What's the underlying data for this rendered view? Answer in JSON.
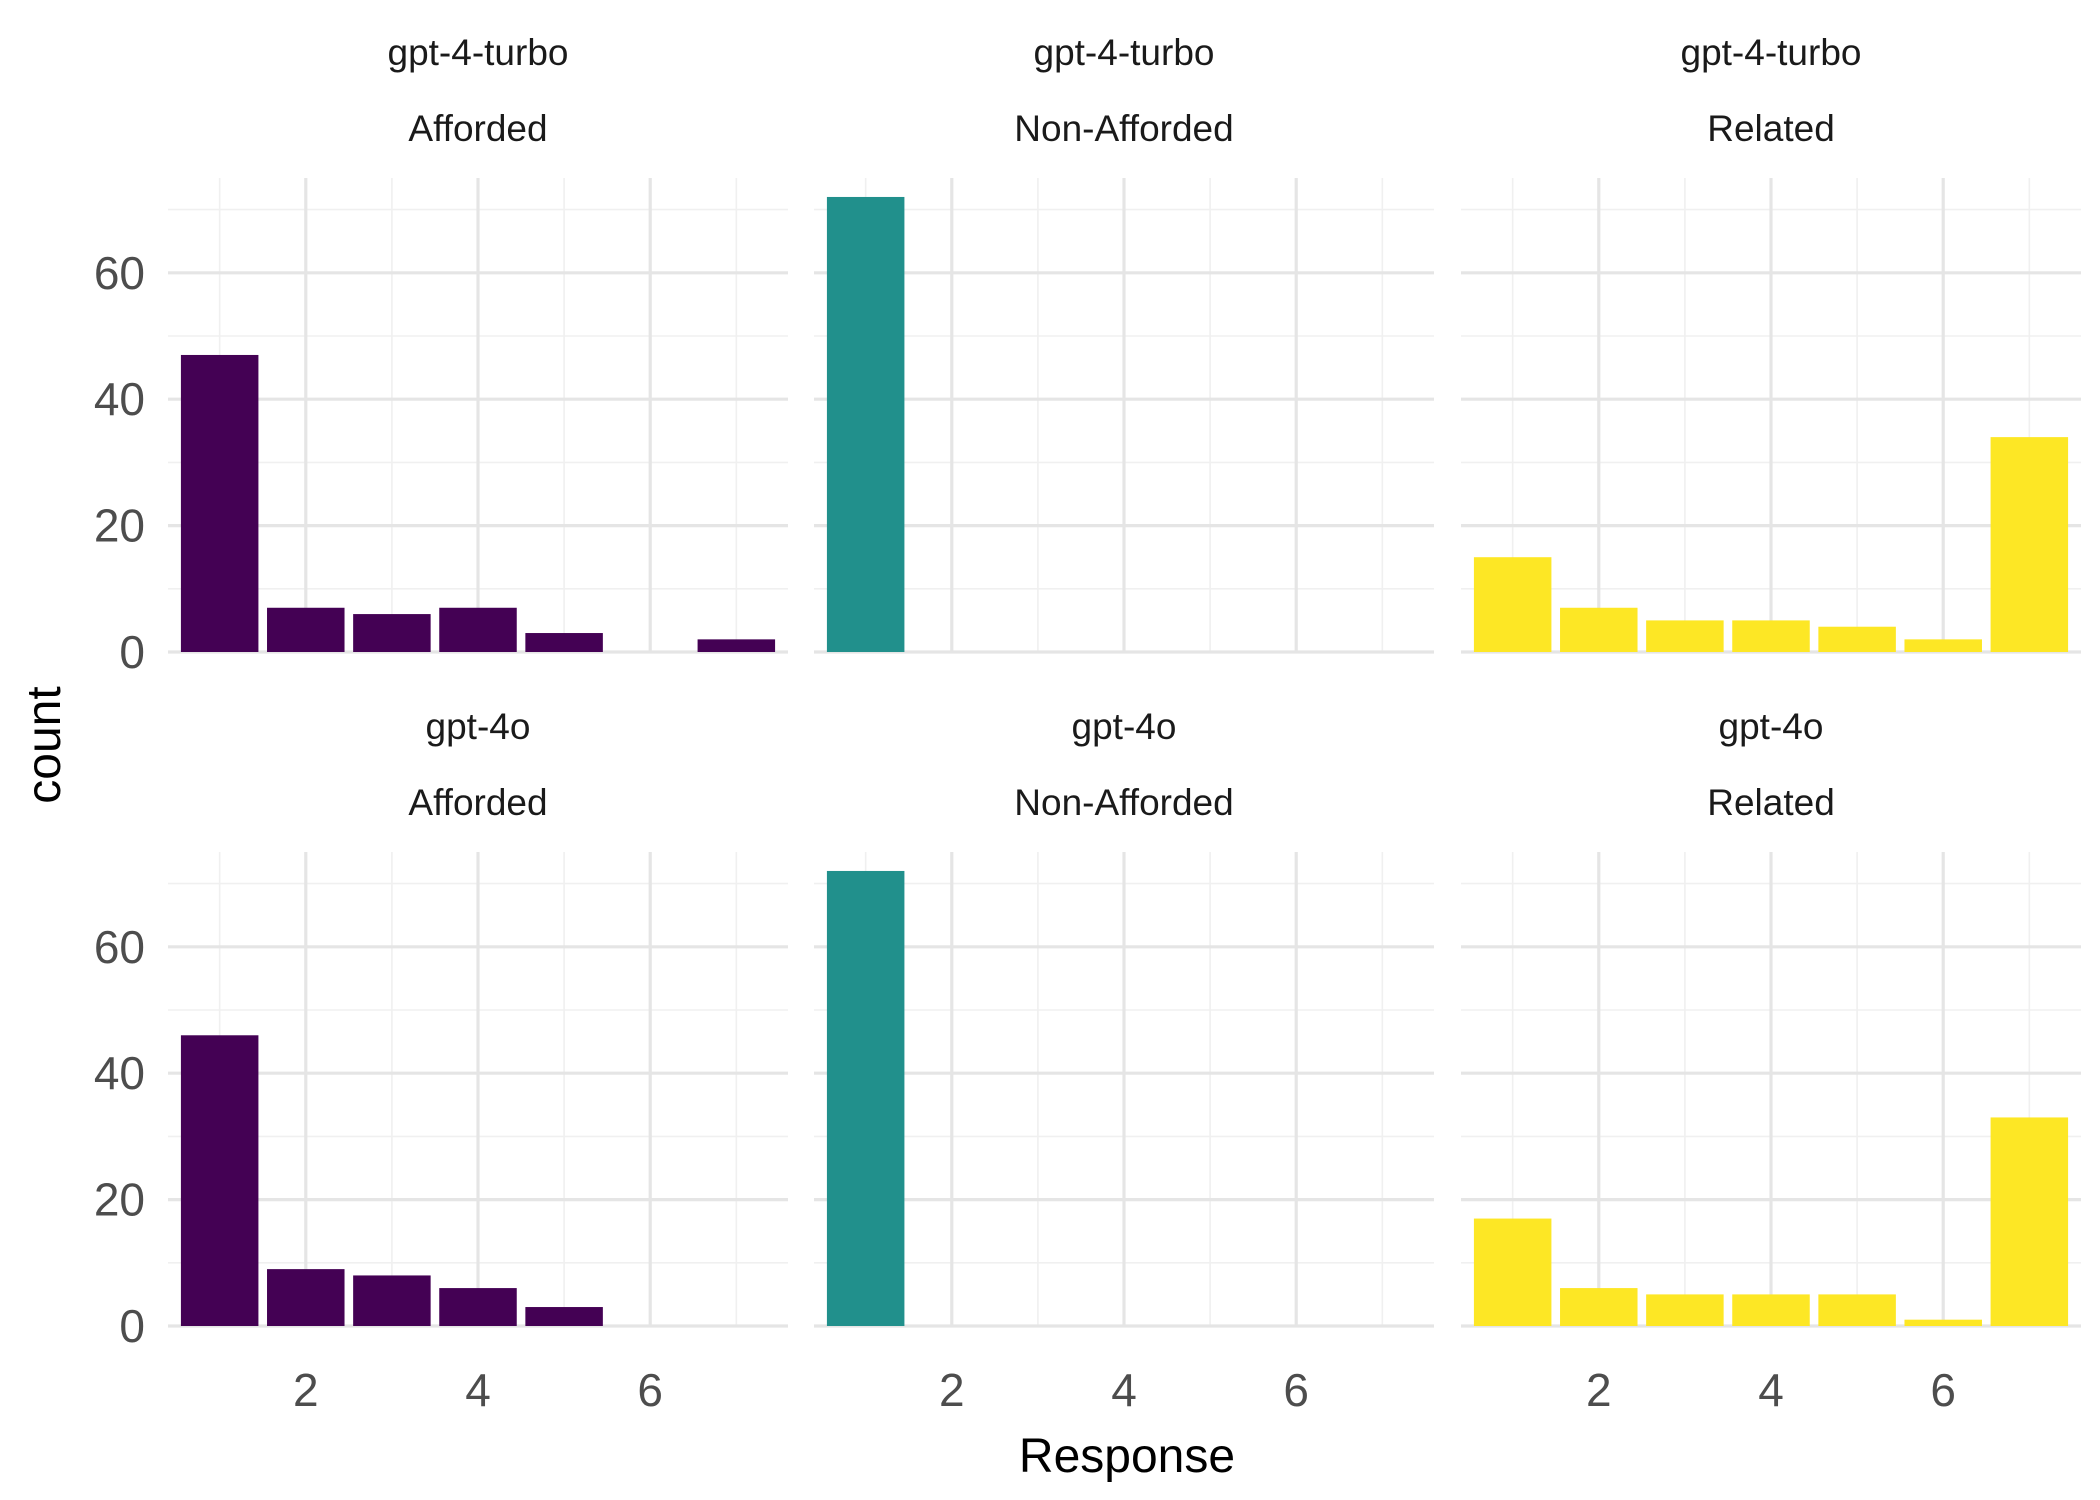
{
  "chart_data": {
    "type": "bar",
    "facet_rows": [
      "gpt-4-turbo",
      "gpt-4o"
    ],
    "facet_cols": [
      "Afforded",
      "Non-Afforded",
      "Related"
    ],
    "x": [
      1,
      2,
      3,
      4,
      5,
      6,
      7
    ],
    "xlim": [
      0.4,
      7.6
    ],
    "ylim": [
      0,
      75
    ],
    "xticks": [
      2,
      4,
      6
    ],
    "yticks": [
      0,
      20,
      40,
      60
    ],
    "xlabel": "Response",
    "ylabel": "count",
    "colors": {
      "Afforded": "#440154",
      "Non-Afforded": "#21908C",
      "Related": "#FDE725"
    },
    "grid": true,
    "legend": "none",
    "panels": [
      {
        "model": "gpt-4-turbo",
        "condition": "Afforded",
        "values": [
          47,
          7,
          6,
          7,
          3,
          0,
          2
        ]
      },
      {
        "model": "gpt-4-turbo",
        "condition": "Non-Afforded",
        "values": [
          72,
          0,
          0,
          0,
          0,
          0,
          0
        ]
      },
      {
        "model": "gpt-4-turbo",
        "condition": "Related",
        "values": [
          15,
          7,
          5,
          5,
          4,
          2,
          34
        ]
      },
      {
        "model": "gpt-4o",
        "condition": "Afforded",
        "values": [
          46,
          9,
          8,
          6,
          3,
          0,
          0
        ]
      },
      {
        "model": "gpt-4o",
        "condition": "Non-Afforded",
        "values": [
          72,
          0,
          0,
          0,
          0,
          0,
          0
        ]
      },
      {
        "model": "gpt-4o",
        "condition": "Related",
        "values": [
          17,
          6,
          5,
          5,
          5,
          1,
          33
        ]
      }
    ]
  }
}
